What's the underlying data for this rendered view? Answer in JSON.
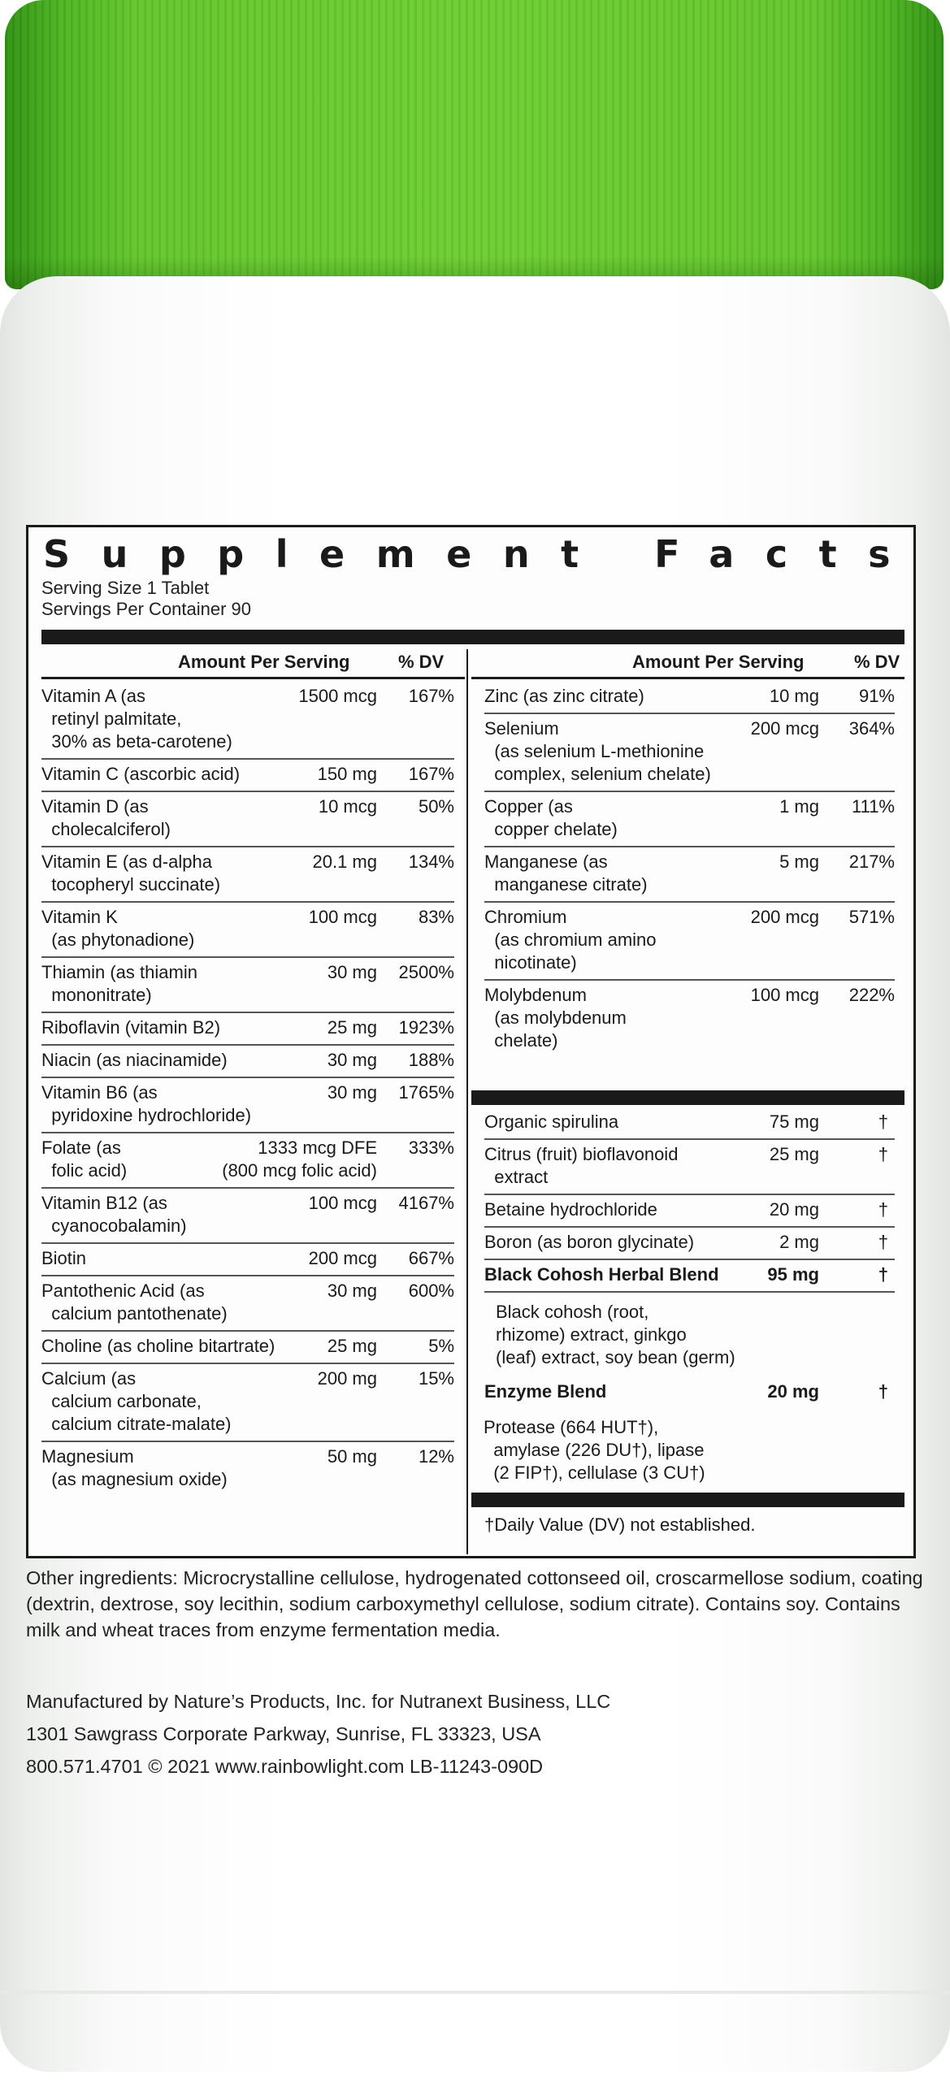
{
  "brand_colors": {
    "cap_green": "#5fc22a",
    "ink": "#1a1a1a"
  },
  "panel": {
    "title": "Supplement Facts",
    "serving_size": "Serving Size 1 Tablet",
    "servings_per_container": "Servings Per Container 90",
    "header_amount": "Amount Per Serving",
    "header_dv": "% DV"
  },
  "left_rows": [
    {
      "name": "Vitamin A (as\n  retinyl palmitate,\n  30% as beta-carotene)",
      "amount": "1500 mcg",
      "dv": "167%"
    },
    {
      "name": "Vitamin C (ascorbic acid)",
      "amount": "150 mg",
      "dv": "167%"
    },
    {
      "name": "Vitamin D (as\n  cholecalciferol)",
      "amount": "10 mcg",
      "dv": "50%"
    },
    {
      "name": "Vitamin E (as d-alpha\n  tocopheryl succinate)",
      "amount": "20.1 mg",
      "dv": "134%"
    },
    {
      "name": "Vitamin K\n  (as phytonadione)",
      "amount": "100 mcg",
      "dv": "83%"
    },
    {
      "name": "Thiamin (as thiamin\n  mononitrate)",
      "amount": "30 mg",
      "dv": "2500%"
    },
    {
      "name": "Riboflavin (vitamin B2)",
      "amount": "25 mg",
      "dv": "1923%"
    },
    {
      "name": "Niacin (as niacinamide)",
      "amount": "30 mg",
      "dv": "188%"
    },
    {
      "name": "Vitamin B6 (as\n  pyridoxine hydrochloride)",
      "amount": "30 mg",
      "dv": "1765%"
    },
    {
      "name": "Folate (as\n  folic acid)",
      "amount": "1333 mcg DFE\n(800 mcg folic acid)",
      "dv": "333%"
    },
    {
      "name": "Vitamin B12 (as\n  cyanocobalamin)",
      "amount": "100 mcg",
      "dv": "4167%"
    },
    {
      "name": "Biotin",
      "amount": "200 mcg",
      "dv": "667%"
    },
    {
      "name": "Pantothenic Acid (as\n  calcium pantothenate)",
      "amount": "30 mg",
      "dv": "600%"
    },
    {
      "name": "Choline (as choline bitartrate)",
      "amount": "25 mg",
      "dv": "5%"
    },
    {
      "name": "Calcium (as\n  calcium carbonate,\n  calcium citrate-malate)",
      "amount": "200 mg",
      "dv": "15%"
    },
    {
      "name": "Magnesium\n  (as magnesium oxide)",
      "amount": "50 mg",
      "dv": "12%"
    }
  ],
  "right_rows": [
    {
      "name": "Zinc (as zinc citrate)",
      "amount": "10 mg",
      "dv": "91%"
    },
    {
      "name": "Selenium\n  (as selenium L-methionine\n  complex, selenium chelate)",
      "amount": "200 mcg",
      "dv": "364%"
    },
    {
      "name": "Copper (as\n  copper chelate)",
      "amount": "1 mg",
      "dv": "111%"
    },
    {
      "name": "Manganese (as\n  manganese citrate)",
      "amount": "5 mg",
      "dv": "217%"
    },
    {
      "name": "Chromium\n  (as chromium amino\n  nicotinate)",
      "amount": "200 mcg",
      "dv": "571%"
    },
    {
      "name": "Molybdenum\n  (as molybdenum\n  chelate)",
      "amount": "100 mcg",
      "dv": "222%"
    }
  ],
  "right_rows_2": [
    {
      "name": "Organic spirulina",
      "amount": "75 mg",
      "dv": "†"
    },
    {
      "name": "Citrus (fruit) bioflavonoid\n  extract",
      "amount": "25 mg",
      "dv": "†"
    },
    {
      "name": "Betaine hydrochloride",
      "amount": "20 mg",
      "dv": "†"
    },
    {
      "name": "Boron (as boron glycinate)",
      "amount": "2 mg",
      "dv": "†"
    },
    {
      "name": "Black Cohosh Herbal Blend",
      "amount": "95 mg",
      "dv": "†"
    },
    {
      "name": "Enzyme Blend",
      "amount": "20 mg",
      "dv": "†"
    }
  ],
  "black_cohosh_detail": "Black cohosh (root,\nrhizome) extract, ginkgo\n(leaf) extract, soy bean (germ)",
  "enzyme_detail": "Protease (664 HUT†),\n  amylase (226 DU†), lipase\n  (2 FIP†), cellulase (3 CU†)",
  "footnote": "†Daily Value (DV) not established.",
  "other_ingredients": "Other ingredients: Microcrystalline cellulose, hydrogenated cottonseed oil, croscarmellose sodium, coating (dextrin, dextrose, soy lecithin, sodium carboxymethyl cellulose, sodium citrate). Contains soy. Contains milk and wheat traces from enzyme fermentation media.",
  "manufacturer": {
    "line1": "Manufactured by Nature’s Products, Inc. for Nutranext Business, LLC",
    "line2": "1301 Sawgrass Corporate Parkway, Sunrise, FL 33323, USA",
    "line3": "800.571.4701 © 2021 www.rainbowlight.com  LB-11243-090D"
  }
}
